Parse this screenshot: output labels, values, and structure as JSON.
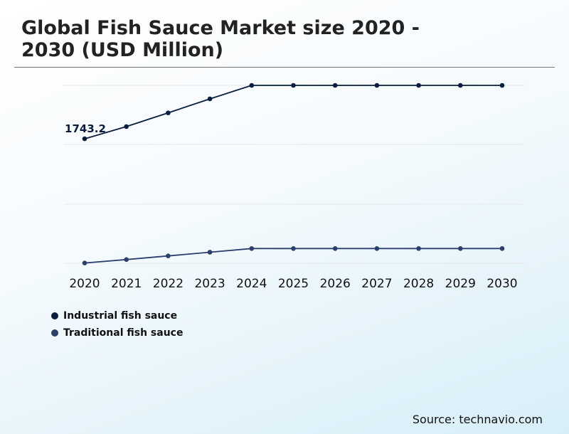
{
  "title": "Global Fish Sauce Market size 2020 - 2030 (USD Million)",
  "source": "Source: technavio.com",
  "colors": {
    "industrial": "#0b1d3f",
    "traditional": "#2c3e6b",
    "gridline": "#e6e8ea",
    "title": "#222222"
  },
  "chart_data": {
    "type": "line",
    "categories": [
      "2020",
      "2021",
      "2022",
      "2023",
      "2024",
      "2025",
      "2026",
      "2027",
      "2028",
      "2029",
      "2030"
    ],
    "series": [
      {
        "name": "Industrial fish sauce",
        "values": [
          1743.2,
          1793,
          1849,
          1906,
          1961,
          1961,
          1961,
          1961,
          1961,
          1961,
          1961
        ],
        "data_labels": [
          "1743.2",
          null,
          null,
          null,
          null,
          null,
          null,
          null,
          null,
          null,
          null
        ]
      },
      {
        "name": "Traditional fish sauce",
        "values": [
          1237,
          1251,
          1266,
          1281,
          1296,
          1296,
          1296,
          1296,
          1296,
          1296,
          1296
        ]
      }
    ],
    "ylim": [
      1236,
      1961
    ],
    "grid": true,
    "y_axis_labels_visible": false,
    "legend_position": "bottom-left"
  }
}
